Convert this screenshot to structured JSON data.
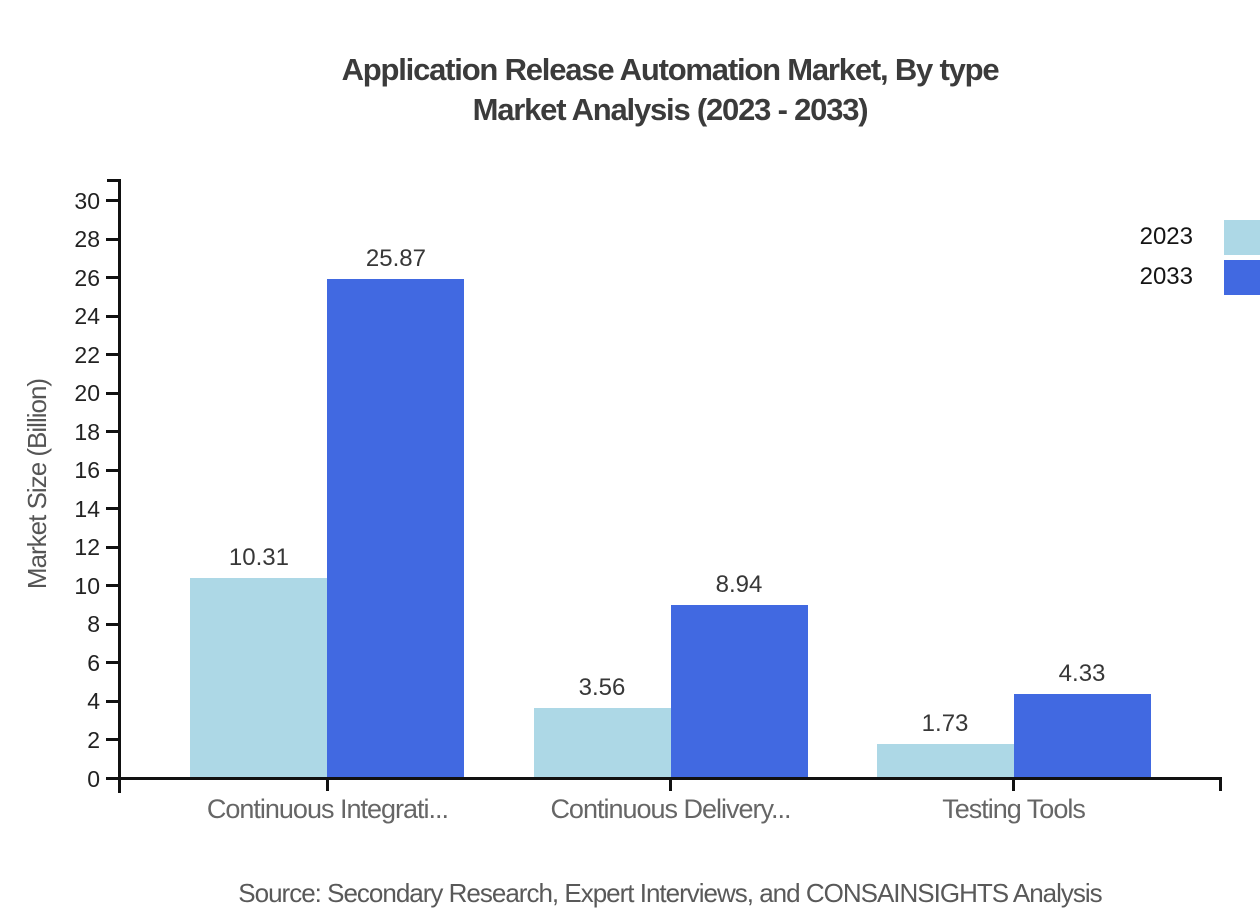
{
  "chart": {
    "title_line1": "Application Release Automation Market, By type",
    "title_line2": "Market Analysis (2023 - 2033)",
    "y_axis_label": "Market Size (Billion)",
    "source": "Source: Secondary Research, Expert Interviews, and CONSAINSIGHTS Analysis"
  },
  "legend": {
    "items": [
      {
        "label": "2023",
        "color": "#ADD8E6"
      },
      {
        "label": "2033",
        "color": "#4169E1"
      }
    ]
  },
  "chart_data": {
    "type": "bar",
    "title": "Application Release Automation Market, By type — Market Analysis (2023 - 2033)",
    "categories": [
      "Continuous Integrati...",
      "Continuous Delivery...",
      "Testing Tools"
    ],
    "series": [
      {
        "name": "2023",
        "color": "#ADD8E6",
        "values": [
          10.31,
          3.56,
          1.73
        ]
      },
      {
        "name": "2033",
        "color": "#4169E1",
        "values": [
          25.87,
          8.94,
          4.33
        ]
      }
    ],
    "xlabel": "",
    "ylabel": "Market Size (Billion)",
    "ylim": [
      0,
      31
    ],
    "ytick_step": 2,
    "ytick_max": 30,
    "value_labels": true,
    "grid": false,
    "legend_position": "top-right-edge"
  }
}
